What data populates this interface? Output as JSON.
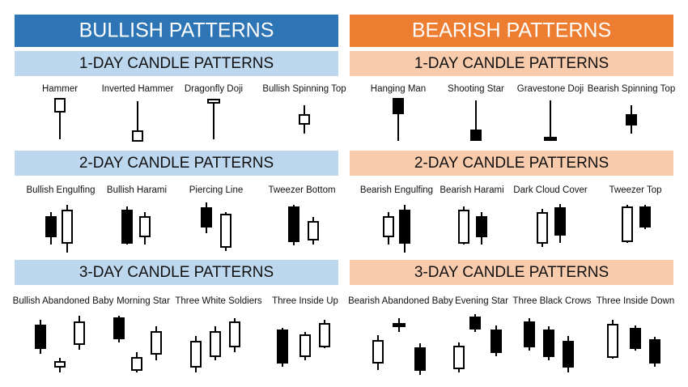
{
  "columns": [
    {
      "title": "BULLISH PATTERNS",
      "sections": [
        {
          "title": "1-DAY CANDLE PATTERNS",
          "patterns": [
            "Hammer",
            "Inverted Hammer",
            "Dragonfly Doji",
            "Bullish Spinning Top"
          ]
        },
        {
          "title": "2-DAY CANDLE PATTERNS",
          "patterns": [
            "Bullish Engulfing",
            "Bullish Harami",
            "Piercing Line",
            "Tweezer Bottom"
          ]
        },
        {
          "title": "3-DAY CANDLE PATTERNS",
          "patterns": [
            "Bullish Abandoned Baby",
            "Morning Star",
            "Three White Soldiers",
            "Three Inside Up"
          ]
        }
      ]
    },
    {
      "title": "BEARISH PATTERNS",
      "sections": [
        {
          "title": "1-DAY CANDLE PATTERNS",
          "patterns": [
            "Hanging Man",
            "Shooting Star",
            "Gravestone Doji",
            "Bearish Spinning Top"
          ]
        },
        {
          "title": "2-DAY CANDLE PATTERNS",
          "patterns": [
            "Bearish Engulfing",
            "Bearish Harami",
            "Dark Cloud Cover",
            "Tweezer Top"
          ]
        },
        {
          "title": "3-DAY CANDLE PATTERNS",
          "patterns": [
            "Bearish Abandoned Baby",
            "Evening Star",
            "Three Black Crows",
            "Three Inside Down"
          ]
        }
      ]
    }
  ]
}
